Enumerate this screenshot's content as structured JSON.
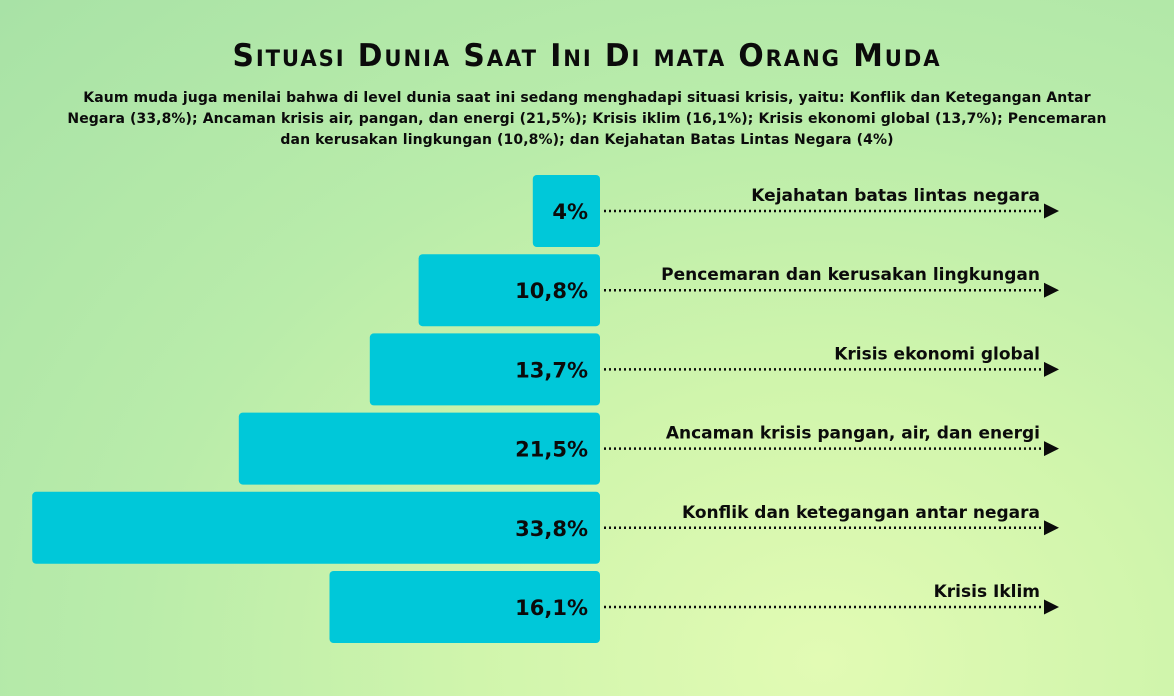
{
  "header": {
    "title": "Situasi Dunia Saat Ini Di mata Orang Muda",
    "subtitle": "Kaum muda juga menilai bahwa di level dunia saat ini sedang menghadapi situasi krisis, yaitu: Konflik dan Ketegangan Antar Negara (33,8%); Ancaman krisis air, pangan, dan energi (21,5%); Krisis iklim (16,1%); Krisis ekonomi global (13,7%); Pencemaran dan kerusakan lingkungan (10,8%); dan Kejahatan Batas Lintas Negara (4%)"
  },
  "colors": {
    "bar": "#00c8d9",
    "text": "#0b0b0b",
    "connector": "#0b0b0b"
  },
  "chart_data": {
    "type": "bar",
    "orientation": "horizontal",
    "categories": [
      "Kejahatan batas lintas negara",
      "Pencemaran dan kerusakan lingkungan",
      "Krisis ekonomi global",
      "Ancaman krisis pangan, air, dan energi",
      "Konflik dan ketegangan antar negara",
      "Krisis Iklim"
    ],
    "values": [
      4,
      10.8,
      13.7,
      21.5,
      33.8,
      16.1
    ],
    "value_labels": [
      "4%",
      "10,8%",
      "13,7%",
      "21,5%",
      "33,8%",
      "16,1%"
    ],
    "unit": "%",
    "grid": false,
    "legend": "none"
  }
}
